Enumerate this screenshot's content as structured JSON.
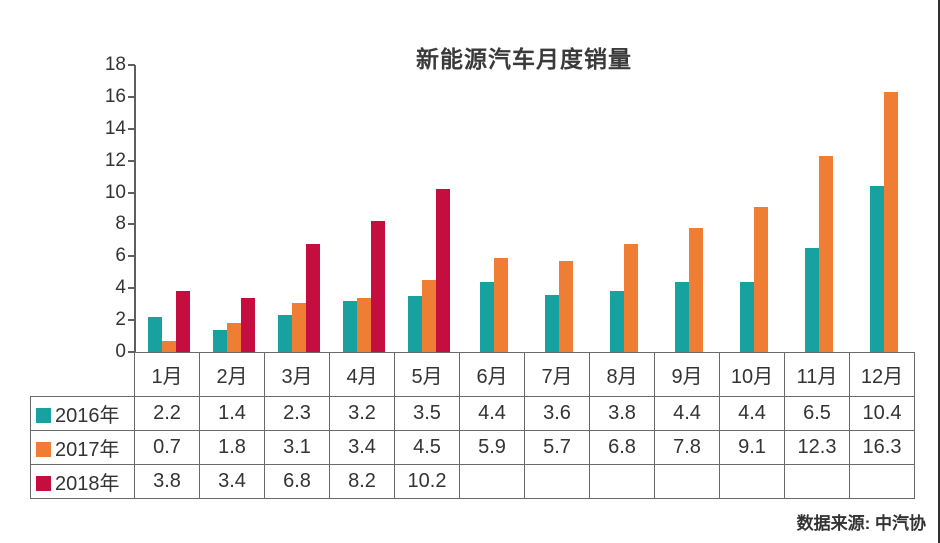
{
  "page": {
    "source_label": "数据来源: 中汽协"
  },
  "chart_data": {
    "type": "bar",
    "title": "新能源汽车月度销量",
    "categories": [
      "1月",
      "2月",
      "3月",
      "4月",
      "5月",
      "6月",
      "7月",
      "8月",
      "9月",
      "10月",
      "11月",
      "12月"
    ],
    "series": [
      {
        "name": "2016年",
        "color": "#17A2A0",
        "values": [
          2.2,
          1.4,
          2.3,
          3.2,
          3.5,
          4.4,
          3.6,
          3.8,
          4.4,
          4.4,
          6.5,
          10.4
        ]
      },
      {
        "name": "2017年",
        "color": "#EF7D34",
        "values": [
          0.7,
          1.8,
          3.1,
          3.4,
          4.5,
          5.9,
          5.7,
          6.8,
          7.8,
          9.1,
          12.3,
          16.3
        ]
      },
      {
        "name": "2018年",
        "color": "#C50E3F",
        "values": [
          3.8,
          3.4,
          6.8,
          8.2,
          10.2,
          null,
          null,
          null,
          null,
          null,
          null,
          null
        ]
      }
    ],
    "xlabel": "",
    "ylabel": "",
    "ylim": [
      0,
      18
    ],
    "ytick_step": 2,
    "grid": false,
    "legend_position": "table-rows-left"
  }
}
